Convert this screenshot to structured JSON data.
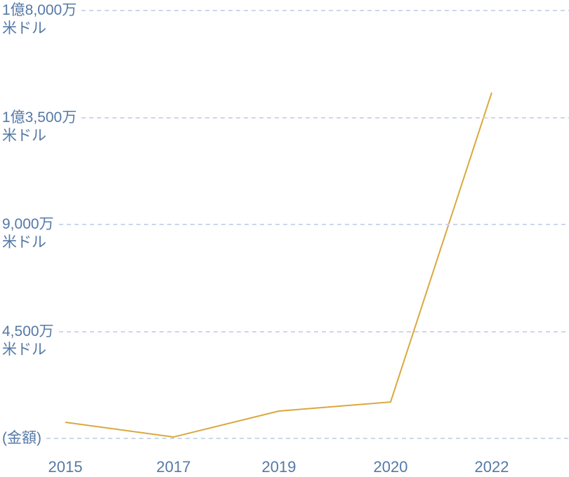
{
  "chart_data": {
    "type": "line",
    "title": "",
    "xlabel": "",
    "ylabel": "(金額)",
    "unit": "万米ドル",
    "x_categories": [
      "2015",
      "2017",
      "2019",
      "2020",
      "2022"
    ],
    "series": [
      {
        "name": "金額",
        "values_man_usd": [
          680,
          60,
          1150,
          1530,
          14550
        ]
      }
    ],
    "y_axis": {
      "max": 18000,
      "min": 0,
      "ticks": [
        {
          "value": 18000,
          "label": "1億8,000万",
          "sublabel": "米ドル"
        },
        {
          "value": 13500,
          "label": "1億3,500万",
          "sublabel": "米ドル"
        },
        {
          "value": 9000,
          "label": "9,000万",
          "sublabel": "米ドル"
        },
        {
          "value": 4500,
          "label": "4,500万",
          "sublabel": "米ドル"
        },
        {
          "value": 0,
          "label": "(金額)",
          "sublabel": ""
        }
      ]
    },
    "grid": "horizontal dashed, no vertical grid, no axis lines",
    "legend": "none",
    "line_color": "#DAA83E"
  },
  "colors": {
    "line": "#DAA83E",
    "grid": "#CCD7EC",
    "label": "#5579A6",
    "background": "#FFFFFF"
  }
}
